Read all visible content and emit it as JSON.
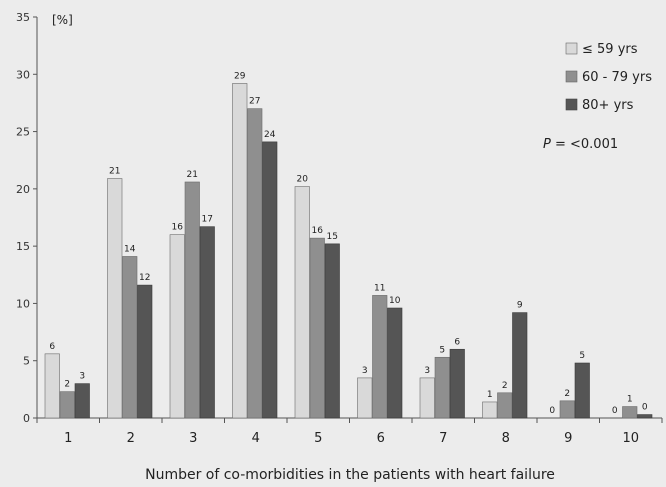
{
  "chart_data": {
    "type": "bar",
    "ylabel": "[%]",
    "xlabel": "Number of co-morbidities in the patients with heart failure",
    "ylim": [
      0,
      35
    ],
    "yticks": [
      0,
      5,
      10,
      15,
      20,
      25,
      30,
      35
    ],
    "categories": [
      "1",
      "2",
      "3",
      "4",
      "5",
      "6",
      "7",
      "8",
      "9",
      "10"
    ],
    "series": [
      {
        "name": "≤ 59 yrs",
        "color": "#d9d9d9",
        "values": [
          5.6,
          20.9,
          16.0,
          29.2,
          20.2,
          3.5,
          3.5,
          1.4,
          0,
          0
        ],
        "labels": [
          "6",
          "21",
          "16",
          "29",
          "20",
          "3",
          "3",
          "1",
          "0",
          "0"
        ]
      },
      {
        "name": "60 - 79 yrs",
        "color": "#8f8f8f",
        "values": [
          2.3,
          14.1,
          20.6,
          27.0,
          15.7,
          10.7,
          5.3,
          2.2,
          1.5,
          1.0
        ],
        "labels": [
          "2",
          "14",
          "21",
          "27",
          "16",
          "11",
          "5",
          "2",
          "2",
          "1"
        ]
      },
      {
        "name": "80+ yrs",
        "color": "#555555",
        "values": [
          3.0,
          11.6,
          16.7,
          24.1,
          15.2,
          9.6,
          6.0,
          9.2,
          4.8,
          0.3
        ],
        "labels": [
          "3",
          "12",
          "17",
          "24",
          "15",
          "10",
          "6",
          "9",
          "5",
          "0"
        ]
      }
    ],
    "annotation": {
      "p_symbol": "P",
      "p_text": " = <0.001"
    },
    "legend": "top-right",
    "grid": false
  }
}
